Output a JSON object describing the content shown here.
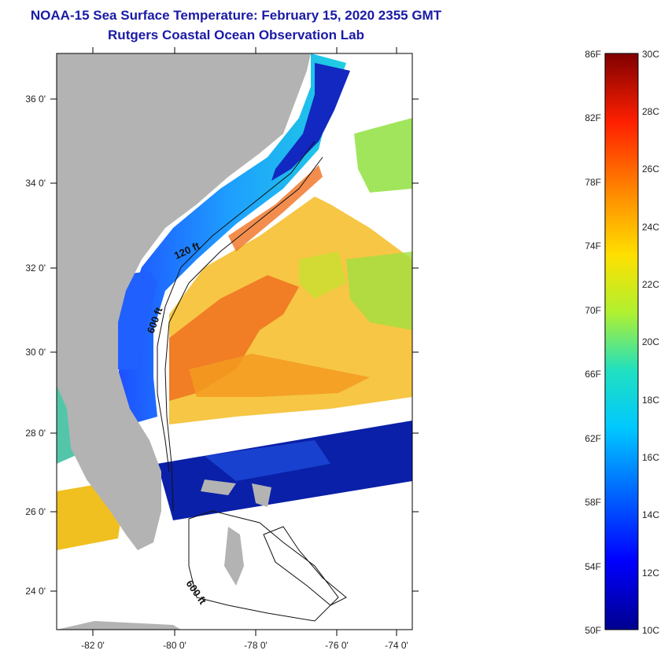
{
  "header": {
    "title": "NOAA-15 Sea Surface Temperature:  February 15, 2020 2355 GMT",
    "subtitle": "Rutgers Coastal Ocean Observation Lab"
  },
  "map": {
    "lat_labels": [
      "36 0'",
      "34 0'",
      "32 0'",
      "30 0'",
      "28 0'",
      "26 0'",
      "24 0'"
    ],
    "lon_labels": [
      "-82 0'",
      "-80 0'",
      "-78 0'",
      "-76 0'",
      "-74 0'"
    ],
    "contour_labels": [
      "120 ft",
      "600 ft",
      "600 ft"
    ],
    "colors": {
      "land": "#b3b3b3",
      "cold": "#0a1ea8",
      "cool": "#1e90ff",
      "mid": "#40e0a0",
      "warm": "#f5d020",
      "hot": "#f07020"
    }
  },
  "colorbar": {
    "fahrenheit_labels": [
      "86F",
      "82F",
      "78F",
      "74F",
      "70F",
      "66F",
      "62F",
      "58F",
      "54F",
      "50F"
    ],
    "celsius_labels": [
      "30C",
      "28C",
      "26C",
      "24C",
      "22C",
      "20C",
      "18C",
      "16C",
      "14C",
      "12C",
      "10C"
    ],
    "min_c": 10,
    "max_c": 30
  }
}
